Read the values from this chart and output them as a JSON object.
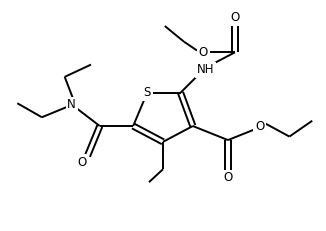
{
  "bg_color": "#ffffff",
  "line_color": "#000000",
  "line_width": 1.4,
  "figsize": [
    3.26,
    2.31
  ],
  "dpi": 100,
  "font_size": 8.5,
  "xlim": [
    0,
    9
  ],
  "ylim": [
    0,
    6.5
  ]
}
